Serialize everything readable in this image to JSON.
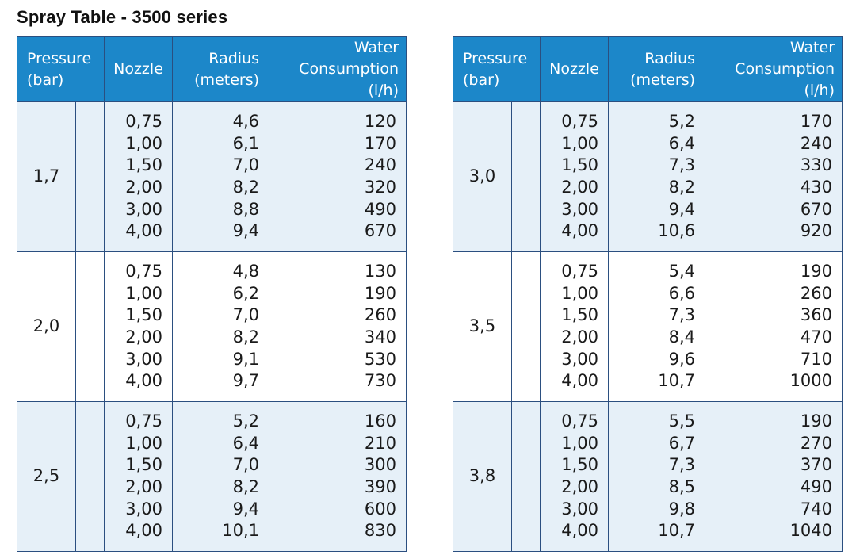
{
  "title": "Spray Table - 3500 series",
  "headers": {
    "pressure": [
      "Pressure",
      "(bar)"
    ],
    "nozzle": "Nozzle",
    "radius": [
      "Radius",
      "(meters)"
    ],
    "water": [
      "Water",
      "Consumption (l/h)"
    ]
  },
  "tables": [
    {
      "groups": [
        {
          "pressure": "1,7",
          "rows": [
            {
              "nozzle": "0,75",
              "radius": "4,6",
              "water": "120"
            },
            {
              "nozzle": "1,00",
              "radius": "6,1",
              "water": "170"
            },
            {
              "nozzle": "1,50",
              "radius": "7,0",
              "water": "240"
            },
            {
              "nozzle": "2,00",
              "radius": "8,2",
              "water": "320"
            },
            {
              "nozzle": "3,00",
              "radius": "8,8",
              "water": "490"
            },
            {
              "nozzle": "4,00",
              "radius": "9,4",
              "water": "670"
            }
          ]
        },
        {
          "pressure": "2,0",
          "rows": [
            {
              "nozzle": "0,75",
              "radius": "4,8",
              "water": "130"
            },
            {
              "nozzle": "1,00",
              "radius": "6,2",
              "water": "190"
            },
            {
              "nozzle": "1,50",
              "radius": "7,0",
              "water": "260"
            },
            {
              "nozzle": "2,00",
              "radius": "8,2",
              "water": "340"
            },
            {
              "nozzle": "3,00",
              "radius": "9,1",
              "water": "530"
            },
            {
              "nozzle": "4,00",
              "radius": "9,7",
              "water": "730"
            }
          ]
        },
        {
          "pressure": "2,5",
          "rows": [
            {
              "nozzle": "0,75",
              "radius": "5,2",
              "water": "160"
            },
            {
              "nozzle": "1,00",
              "radius": "6,4",
              "water": "210"
            },
            {
              "nozzle": "1,50",
              "radius": "7,0",
              "water": "300"
            },
            {
              "nozzle": "2,00",
              "radius": "8,2",
              "water": "390"
            },
            {
              "nozzle": "3,00",
              "radius": "9,4",
              "water": "600"
            },
            {
              "nozzle": "4,00",
              "radius": "10,1",
              "water": "830"
            }
          ]
        }
      ]
    },
    {
      "groups": [
        {
          "pressure": "3,0",
          "rows": [
            {
              "nozzle": "0,75",
              "radius": "5,2",
              "water": "170"
            },
            {
              "nozzle": "1,00",
              "radius": "6,4",
              "water": "240"
            },
            {
              "nozzle": "1,50",
              "radius": "7,3",
              "water": "330"
            },
            {
              "nozzle": "2,00",
              "radius": "8,2",
              "water": "430"
            },
            {
              "nozzle": "3,00",
              "radius": "9,4",
              "water": "670"
            },
            {
              "nozzle": "4,00",
              "radius": "10,6",
              "water": "920"
            }
          ]
        },
        {
          "pressure": "3,5",
          "rows": [
            {
              "nozzle": "0,75",
              "radius": "5,4",
              "water": "190"
            },
            {
              "nozzle": "1,00",
              "radius": "6,6",
              "water": "260"
            },
            {
              "nozzle": "1,50",
              "radius": "7,3",
              "water": "360"
            },
            {
              "nozzle": "2,00",
              "radius": "8,4",
              "water": "470"
            },
            {
              "nozzle": "3,00",
              "radius": "9,6",
              "water": "710"
            },
            {
              "nozzle": "4,00",
              "radius": "10,7",
              "water": "1000"
            }
          ]
        },
        {
          "pressure": "3,8",
          "rows": [
            {
              "nozzle": "0,75",
              "radius": "5,5",
              "water": "190"
            },
            {
              "nozzle": "1,00",
              "radius": "6,7",
              "water": "270"
            },
            {
              "nozzle": "1,50",
              "radius": "7,3",
              "water": "370"
            },
            {
              "nozzle": "2,00",
              "radius": "8,5",
              "water": "490"
            },
            {
              "nozzle": "3,00",
              "radius": "9,8",
              "water": "740"
            },
            {
              "nozzle": "4,00",
              "radius": "10,7",
              "water": "1040"
            }
          ]
        }
      ]
    }
  ]
}
